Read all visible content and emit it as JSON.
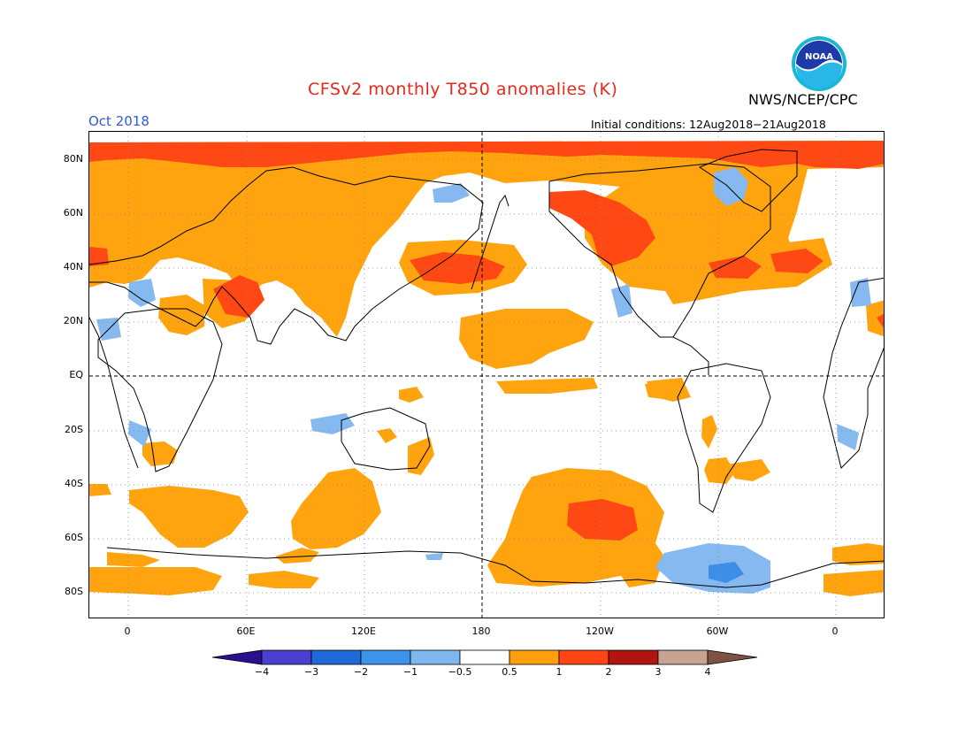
{
  "header": {
    "title": "CFSv2 monthly T850 anomalies (K)",
    "month": "Oct 2018",
    "initial_conditions": "Initial conditions: 12Aug2018−21Aug2018",
    "org": "NWS/NCEP/CPC",
    "logo_text": "NOAA"
  },
  "axes": {
    "y_labels": [
      "80N",
      "60N",
      "40N",
      "20N",
      "EQ",
      "20S",
      "40S",
      "60S",
      "80S"
    ],
    "x_labels": [
      "0",
      "60E",
      "120E",
      "180",
      "120W",
      "60W",
      "0"
    ]
  },
  "colorbar": {
    "labels": [
      "−4",
      "−3",
      "−2",
      "−1",
      "−0.5",
      "0.5",
      "1",
      "2",
      "3",
      "4"
    ],
    "colors": [
      "#2a0f8f",
      "#4b3fd0",
      "#1f69d8",
      "#3c93ea",
      "#7fb8f0",
      "#ffffff",
      "#ff9f0d",
      "#ff4513",
      "#b0150f",
      "#c7a391",
      "#7e5344"
    ]
  },
  "palette": {
    "title": "#e8281a",
    "month": "#2f5bd8",
    "orange": "#ffa30f",
    "red": "#ff4813",
    "blue": "#86b9f0",
    "blue_dark": "#3d8ee8"
  }
}
